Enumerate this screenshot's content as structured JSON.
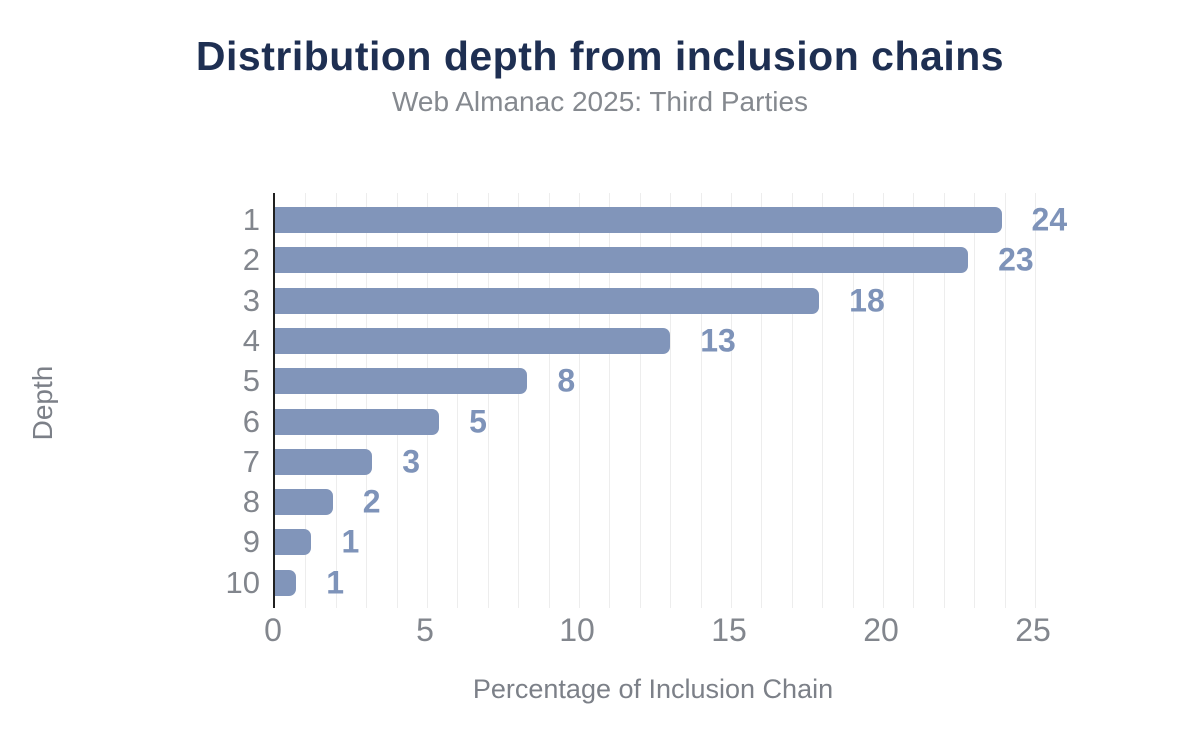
{
  "chart_data": {
    "type": "bar",
    "orientation": "horizontal",
    "title": "Distribution depth from inclusion chains",
    "subtitle": "Web Almanac 2025: Third Parties",
    "xlabel": "Percentage of Inclusion Chain",
    "ylabel": "Depth",
    "categories": [
      "1",
      "2",
      "3",
      "4",
      "5",
      "6",
      "7",
      "8",
      "9",
      "10"
    ],
    "values": [
      24,
      23,
      18,
      13,
      8,
      5,
      3,
      2,
      1,
      1
    ],
    "bar_lengths_pct": [
      23.9,
      22.8,
      17.9,
      13.0,
      8.3,
      5.4,
      3.2,
      1.9,
      1.2,
      0.7
    ],
    "x_ticks": [
      0,
      5,
      10,
      15,
      20,
      25
    ],
    "xlim": [
      0,
      25
    ],
    "grid": {
      "vertical_gridline_every": 1,
      "horizontal_gridlines": false
    },
    "legend": "none",
    "value_labels_shown": true
  },
  "colors": {
    "background": "#ffffff",
    "bar": "#8195ba",
    "value_label": "#7e93b9",
    "title": "#1e2f52",
    "subtitle": "#85898f",
    "tick_label": "#82868d",
    "axis_title": "#7c8088",
    "axis_line": "#202020",
    "gridline": "#ededed"
  }
}
